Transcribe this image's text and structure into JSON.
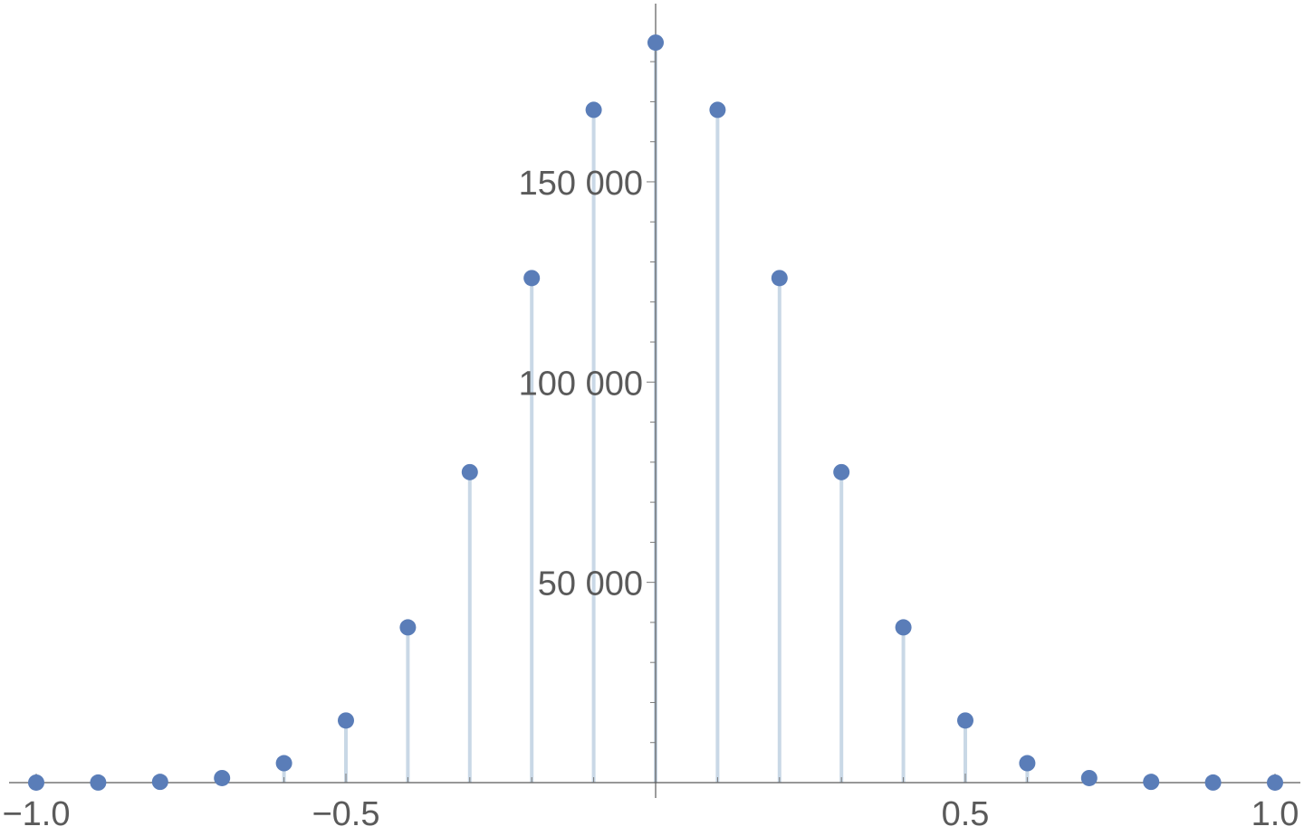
{
  "chart_data": {
    "type": "scatter",
    "style": "stem",
    "title": "",
    "xlabel": "",
    "ylabel": "",
    "xlim": [
      -1.0,
      1.0
    ],
    "ylim": [
      0,
      185000
    ],
    "x_ticks": [
      {
        "value": -1.0,
        "label": "−1.0"
      },
      {
        "value": -0.5,
        "label": "−0.5"
      },
      {
        "value": 0.5,
        "label": "0.5"
      },
      {
        "value": 1.0,
        "label": "1.0"
      }
    ],
    "y_ticks": [
      {
        "value": 50000,
        "label": "50 000"
      },
      {
        "value": 100000,
        "label": "100 000"
      },
      {
        "value": 150000,
        "label": "150 000"
      }
    ],
    "grid": false,
    "colors": {
      "point": "#5a7db8",
      "stem": "#c9d8e6",
      "axis": "#5a5a5a"
    },
    "series": [
      {
        "x": [
          -1.0,
          -0.9,
          -0.8,
          -0.7,
          -0.6,
          -0.5,
          -0.4,
          -0.3,
          -0.2,
          -0.1,
          0.0,
          0.1,
          0.2,
          0.3,
          0.4,
          0.5,
          0.6,
          0.7,
          0.8,
          0.9,
          1.0
        ],
        "values": [
          1,
          20,
          190,
          1140,
          4845,
          15504,
          38760,
          77520,
          125970,
          167960,
          184756,
          167960,
          125970,
          77520,
          38760,
          15504,
          4845,
          1140,
          190,
          20,
          1
        ]
      }
    ]
  }
}
